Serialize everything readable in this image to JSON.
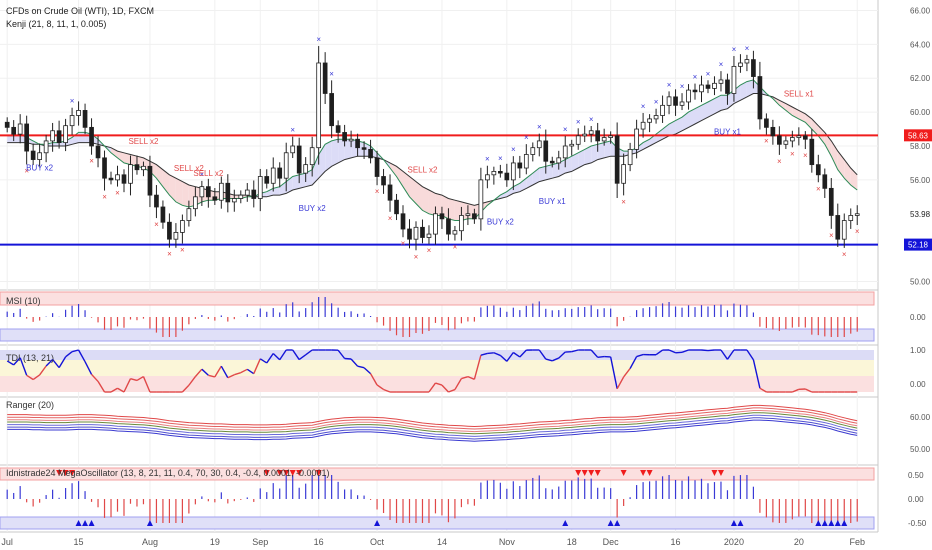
{
  "header": {
    "symbol": "CFDs on Crude Oil (WTI), 1D, FXCM",
    "indicator": "Kenji (21, 8, 11, 1, 0.005)"
  },
  "colors": {
    "up": "#1e1e1e",
    "down": "#1e1e1e",
    "buy": "#3a3ad6",
    "sell": "#e04848",
    "red_line": "#f01c1c",
    "blue_line": "#1414d8",
    "axis_text": "#555555"
  },
  "chart_data": [
    {
      "type": "candlestick",
      "panel": "price",
      "ylim": [
        49.5,
        66.5
      ],
      "y_ticks": [
        "66.00",
        "64.00",
        "62.00",
        "60.00",
        "58.00",
        "56.00",
        "53.98",
        "52.18",
        "50.00"
      ],
      "y_tick_values": [
        66,
        64,
        62,
        60,
        58,
        56,
        53.98,
        52.18,
        50
      ],
      "x_labels": [
        "Jul",
        "15",
        "Aug",
        "19",
        "Sep",
        "16",
        "Oct",
        "14",
        "Nov",
        "18",
        "Dec",
        "16",
        "2020",
        "20",
        "Feb"
      ],
      "x_label_index": [
        0,
        11,
        22,
        32,
        39,
        48,
        57,
        67,
        77,
        87,
        93,
        103,
        112,
        122,
        131
      ],
      "horizontal_lines": [
        {
          "name": "resistance",
          "value": 58.63,
          "label": "58.63",
          "color": "#f01c1c"
        },
        {
          "name": "support",
          "value": 52.18,
          "label": "52.18",
          "color": "#1414d8"
        }
      ],
      "current_price": {
        "value": 53.98,
        "label": "53.98"
      },
      "signals": [
        {
          "label": "BUY x2",
          "index": 5,
          "kind": "buy"
        },
        {
          "label": "SELL x2",
          "index": 21,
          "kind": "sell"
        },
        {
          "label": "SELL x2",
          "index": 28,
          "kind": "sell"
        },
        {
          "label": "SELL x2",
          "index": 31,
          "kind": "sell"
        },
        {
          "label": "BUY x2",
          "index": 47,
          "kind": "buy"
        },
        {
          "label": "SELL x2",
          "index": 64,
          "kind": "sell"
        },
        {
          "label": "BUY x2",
          "index": 76,
          "kind": "buy"
        },
        {
          "label": "BUY x1",
          "index": 84,
          "kind": "buy"
        },
        {
          "label": "BUY x1",
          "index": 111,
          "kind": "buy"
        },
        {
          "label": "SELL x1",
          "index": 122,
          "kind": "sell"
        }
      ],
      "close": [
        59.1,
        58.7,
        59.3,
        57.7,
        57.2,
        57.6,
        58.3,
        58.9,
        58.2,
        59.2,
        59.8,
        60.1,
        59.1,
        58.0,
        57.3,
        56.1,
        56.0,
        56.3,
        55.8,
        56.9,
        56.6,
        56.8,
        55.1,
        54.4,
        53.5,
        52.5,
        52.9,
        53.6,
        54.3,
        55.0,
        55.6,
        55.0,
        54.8,
        55.8,
        54.7,
        54.9,
        55.1,
        55.4,
        54.9,
        56.2,
        55.8,
        56.7,
        56.1,
        57.6,
        58.0,
        56.4,
        56.9,
        57.9,
        62.9,
        61.1,
        59.2,
        58.8,
        58.3,
        58.4,
        57.9,
        57.8,
        57.3,
        56.2,
        55.7,
        54.8,
        54.0,
        53.1,
        52.5,
        53.2,
        52.6,
        52.8,
        54.0,
        53.7,
        52.8,
        53.0,
        53.9,
        54.0,
        53.7,
        56.0,
        56.3,
        56.5,
        56.4,
        56.0,
        57.0,
        56.7,
        57.5,
        57.9,
        58.3,
        57.1,
        57.0,
        57.3,
        58.0,
        58.1,
        58.6,
        58.7,
        58.9,
        58.3,
        58.5,
        58.6,
        55.8,
        56.9,
        57.8,
        59.0,
        59.4,
        59.6,
        59.8,
        60.4,
        60.9,
        60.4,
        60.6,
        61.3,
        61.2,
        61.6,
        61.4,
        61.7,
        61.9,
        61.1,
        62.7,
        62.9,
        63.1,
        62.1,
        59.6,
        59.1,
        58.6,
        58.1,
        58.3,
        58.5,
        58.6,
        58.4,
        56.9,
        56.3,
        55.5,
        53.9,
        52.5,
        53.6,
        53.9,
        54.0
      ],
      "open_high_low_source": "estimated from candle bodies and wicks",
      "ma_fast": [
        58.6,
        58.6,
        58.7,
        58.5,
        58.3,
        58.1,
        58.1,
        58.2,
        58.2,
        58.3,
        58.5,
        58.8,
        58.8,
        58.7,
        58.4,
        58.0,
        57.6,
        57.3,
        57.0,
        56.9,
        56.8,
        56.7,
        56.5,
        56.1,
        55.6,
        55.1,
        54.7,
        54.5,
        54.4,
        54.5,
        54.7,
        54.8,
        54.8,
        54.9,
        54.9,
        54.9,
        54.9,
        55.0,
        55.0,
        55.2,
        55.3,
        55.5,
        55.6,
        55.9,
        56.2,
        56.3,
        56.4,
        56.6,
        57.5,
        58.1,
        58.3,
        58.4,
        58.4,
        58.4,
        58.3,
        58.2,
        58.0,
        57.6,
        57.2,
        56.7,
        56.2,
        55.6,
        55.0,
        54.6,
        54.2,
        54.0,
        53.9,
        53.9,
        53.7,
        53.6,
        53.6,
        53.7,
        53.7,
        54.1,
        54.5,
        54.8,
        55.1,
        55.3,
        55.6,
        55.8,
        56.1,
        56.4,
        56.7,
        56.8,
        56.9,
        57.0,
        57.2,
        57.4,
        57.6,
        57.8,
        58.0,
        58.1,
        58.2,
        58.3,
        57.9,
        57.7,
        57.7,
        57.9,
        58.2,
        58.4,
        58.7,
        59.0,
        59.3,
        59.5,
        59.7,
        60.0,
        60.2,
        60.4,
        60.6,
        60.8,
        61.0,
        61.0,
        61.3,
        61.6,
        61.8,
        61.9,
        61.5,
        61.1,
        60.8,
        60.4,
        60.1,
        59.8,
        59.6,
        59.4,
        59.0,
        58.6,
        58.1,
        57.4,
        56.6,
        56.1,
        55.7,
        55.4
      ],
      "ma_slow": [
        58.2,
        58.2,
        58.2,
        58.2,
        58.1,
        58.1,
        58.0,
        58.0,
        58.0,
        58.0,
        58.1,
        58.2,
        58.2,
        58.2,
        58.1,
        58.0,
        57.9,
        57.7,
        57.6,
        57.5,
        57.4,
        57.3,
        57.1,
        56.9,
        56.6,
        56.3,
        56.1,
        55.9,
        55.7,
        55.6,
        55.5,
        55.4,
        55.3,
        55.3,
        55.2,
        55.1,
        55.1,
        55.1,
        55.0,
        55.0,
        55.0,
        55.1,
        55.1,
        55.2,
        55.4,
        55.5,
        55.6,
        55.7,
        56.1,
        56.5,
        56.8,
        57.0,
        57.2,
        57.3,
        57.4,
        57.4,
        57.4,
        57.3,
        57.2,
        57.0,
        56.8,
        56.5,
        56.2,
        55.9,
        55.6,
        55.4,
        55.2,
        55.1,
        54.9,
        54.8,
        54.7,
        54.6,
        54.5,
        54.6,
        54.7,
        54.8,
        54.9,
        55.0,
        55.2,
        55.3,
        55.5,
        55.7,
        55.9,
        56.0,
        56.1,
        56.2,
        56.4,
        56.5,
        56.7,
        56.9,
        57.0,
        57.2,
        57.3,
        57.4,
        57.4,
        57.4,
        57.5,
        57.6,
        57.8,
        58.0,
        58.2,
        58.4,
        58.6,
        58.7,
        58.9,
        59.1,
        59.3,
        59.5,
        59.7,
        59.9,
        60.1,
        60.2,
        60.5,
        60.7,
        60.9,
        61.1,
        61.1,
        61.0,
        60.9,
        60.7,
        60.5,
        60.3,
        60.1,
        59.9,
        59.6,
        59.2,
        58.8,
        58.3,
        57.7,
        57.2,
        56.7,
        56.3
      ]
    },
    {
      "type": "bar",
      "panel": "MSI (10)",
      "title": "MSI (10)",
      "y_ticks": [
        "0.00"
      ],
      "description_source": "histogram, positive bars blue, negative bars red"
    },
    {
      "type": "line",
      "panel": "TDI (13, 21)",
      "title": "TDI (13, 21)",
      "y_ticks": [
        "1.00",
        "0.00"
      ]
    },
    {
      "type": "line",
      "panel": "Ranger (20)",
      "title": "Ranger (20)",
      "y_ticks": [
        "60.00",
        "50.00"
      ]
    },
    {
      "type": "bar",
      "panel": "Idnistrade24 MegaOscillator",
      "title": "Idnistrade24 MegaOscillator (13, 8, 21, 11, 0.4, 70, 30, 0.4, -0.4, 0.0001, -0.0001)",
      "y_ticks": [
        "0.50",
        "0.00",
        "-0.50"
      ],
      "markers_up_index": [
        11,
        12,
        13,
        22,
        57,
        86,
        93,
        94,
        112,
        113,
        125,
        126,
        127,
        128,
        129
      ],
      "markers_down_index": [
        8,
        9,
        10,
        40,
        42,
        43,
        44,
        45,
        48,
        88,
        89,
        90,
        91,
        95,
        98,
        99,
        109,
        110
      ]
    }
  ]
}
